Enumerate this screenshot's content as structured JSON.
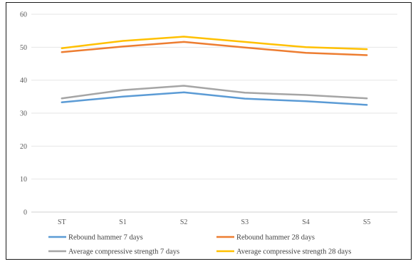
{
  "chart_data": {
    "type": "line",
    "title": "",
    "xlabel": "",
    "ylabel": "",
    "categories": [
      "ST",
      "S1",
      "S2",
      "S3",
      "S4",
      "S5"
    ],
    "ylim": [
      0,
      60
    ],
    "yticks": [
      "0",
      "10",
      "20",
      "30",
      "40",
      "50",
      "60"
    ],
    "grid": true,
    "legend_position": "bottom",
    "series": [
      {
        "name": "Rebound hammer 7 days",
        "color": "#5b9bd5",
        "values": [
          33.3,
          35.0,
          36.3,
          34.4,
          33.6,
          32.5
        ]
      },
      {
        "name": "Rebound hammer 28 days",
        "color": "#ed7d31",
        "values": [
          48.5,
          50.2,
          51.6,
          49.9,
          48.3,
          47.6
        ]
      },
      {
        "name": "Average compressive strength 7 days",
        "color": "#a5a5a5",
        "values": [
          34.5,
          37.0,
          38.3,
          36.2,
          35.5,
          34.5
        ]
      },
      {
        "name": "Average compressive strength 28 days",
        "color": "#ffc000",
        "values": [
          49.7,
          51.9,
          53.2,
          51.6,
          50.0,
          49.4
        ]
      }
    ]
  }
}
